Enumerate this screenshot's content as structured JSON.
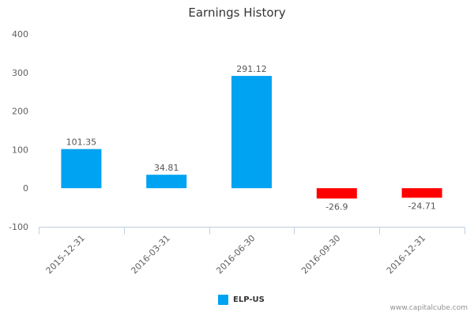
{
  "chart_data": {
    "type": "bar",
    "title": "Earnings History",
    "xlabel": "",
    "ylabel": "",
    "categories": [
      "2015-12-31",
      "2016-03-31",
      "2016-06-30",
      "2016-09-30",
      "2016-12-31"
    ],
    "series": [
      {
        "name": "ELP-US",
        "values": [
          101.35,
          34.81,
          291.12,
          -26.9,
          -24.71
        ],
        "value_labels": [
          "101.35",
          "34.81",
          "291.12",
          "-26.9",
          "-24.71"
        ]
      }
    ],
    "ylim": [
      -100,
      400
    ],
    "yticks": [
      -100,
      0,
      100,
      200,
      300,
      400
    ],
    "grid": false,
    "legend_position": "bottom-center"
  },
  "colors": {
    "positive": "#00a2f2",
    "negative": "#ff0000",
    "axis": "#c0d0e0",
    "tick_text": "#606060",
    "label_text": "#555555"
  },
  "credit": "www.capitalcube.com"
}
